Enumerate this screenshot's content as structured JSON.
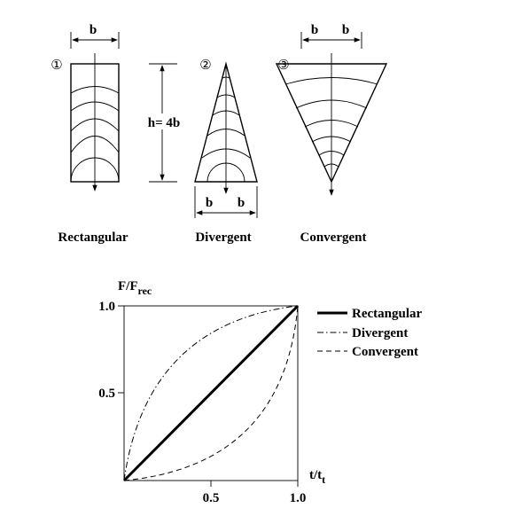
{
  "diagram": {
    "shapes": [
      {
        "number": "①",
        "label": "Rectangular",
        "dims": [
          "b"
        ],
        "height": "h= 4b"
      },
      {
        "number": "②",
        "label": "Divergent",
        "dims": [
          "b",
          "b"
        ]
      },
      {
        "number": "③",
        "label": "Convergent",
        "dims": [
          "b",
          "b"
        ]
      }
    ]
  },
  "plot": {
    "y_label": "F/F",
    "y_label_sub": "rec",
    "x_label": "t/t",
    "x_label_sub": "t",
    "y_tick_labels": [
      "0.5",
      "1.0"
    ],
    "x_tick_labels": [
      "0.5",
      "1.0"
    ],
    "legend": [
      "Rectangular",
      "Divergent",
      "Convergent"
    ]
  }
}
